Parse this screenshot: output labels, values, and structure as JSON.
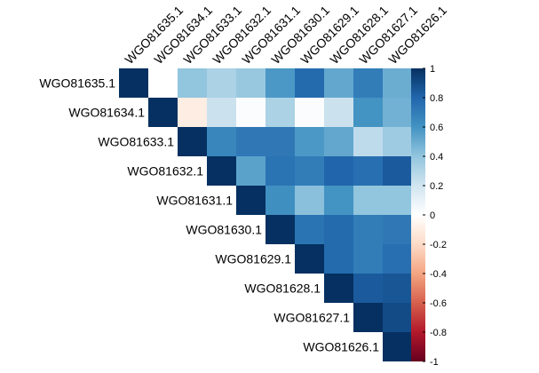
{
  "chart_data": {
    "type": "heatmap",
    "variant": "correlation-matrix-upper",
    "labels": [
      "WGO81635.1",
      "WGO81634.1",
      "WGO81633.1",
      "WGO81632.1",
      "WGO81631.1",
      "WGO81630.1",
      "WGO81629.1",
      "WGO81628.1",
      "WGO81627.1",
      "WGO81626.1"
    ],
    "matrix": [
      [
        1.0,
        0.0,
        0.4,
        0.32,
        0.38,
        0.58,
        0.78,
        0.52,
        0.7,
        0.5
      ],
      [
        null,
        1.0,
        -0.1,
        0.22,
        0.02,
        0.32,
        0.02,
        0.22,
        0.6,
        0.48
      ],
      [
        null,
        null,
        1.0,
        0.66,
        0.72,
        0.72,
        0.58,
        0.52,
        0.26,
        0.36
      ],
      [
        null,
        null,
        null,
        1.0,
        0.54,
        0.74,
        0.7,
        0.8,
        0.76,
        0.84
      ],
      [
        null,
        null,
        null,
        null,
        1.0,
        0.62,
        0.42,
        0.6,
        0.4,
        0.4
      ],
      [
        null,
        null,
        null,
        null,
        null,
        1.0,
        0.74,
        0.78,
        0.7,
        0.72
      ],
      [
        null,
        null,
        null,
        null,
        null,
        null,
        1.0,
        0.78,
        0.7,
        0.76
      ],
      [
        null,
        null,
        null,
        null,
        null,
        null,
        null,
        1.0,
        0.84,
        0.86
      ],
      [
        null,
        null,
        null,
        null,
        null,
        null,
        null,
        null,
        1.0,
        0.9
      ],
      [
        null,
        null,
        null,
        null,
        null,
        null,
        null,
        null,
        null,
        1.0
      ]
    ],
    "colorbar": {
      "range": [
        -1,
        1
      ],
      "ticks": [
        "1",
        "0.8",
        "0.6",
        "0.4",
        "0.2",
        "0",
        "-0.2",
        "-0.4",
        "-0.6",
        "-0.8",
        "-1"
      ]
    },
    "colors": {
      "negative_end": "#67001F",
      "zero": "#FFFFFF",
      "positive_end": "#053061"
    }
  }
}
